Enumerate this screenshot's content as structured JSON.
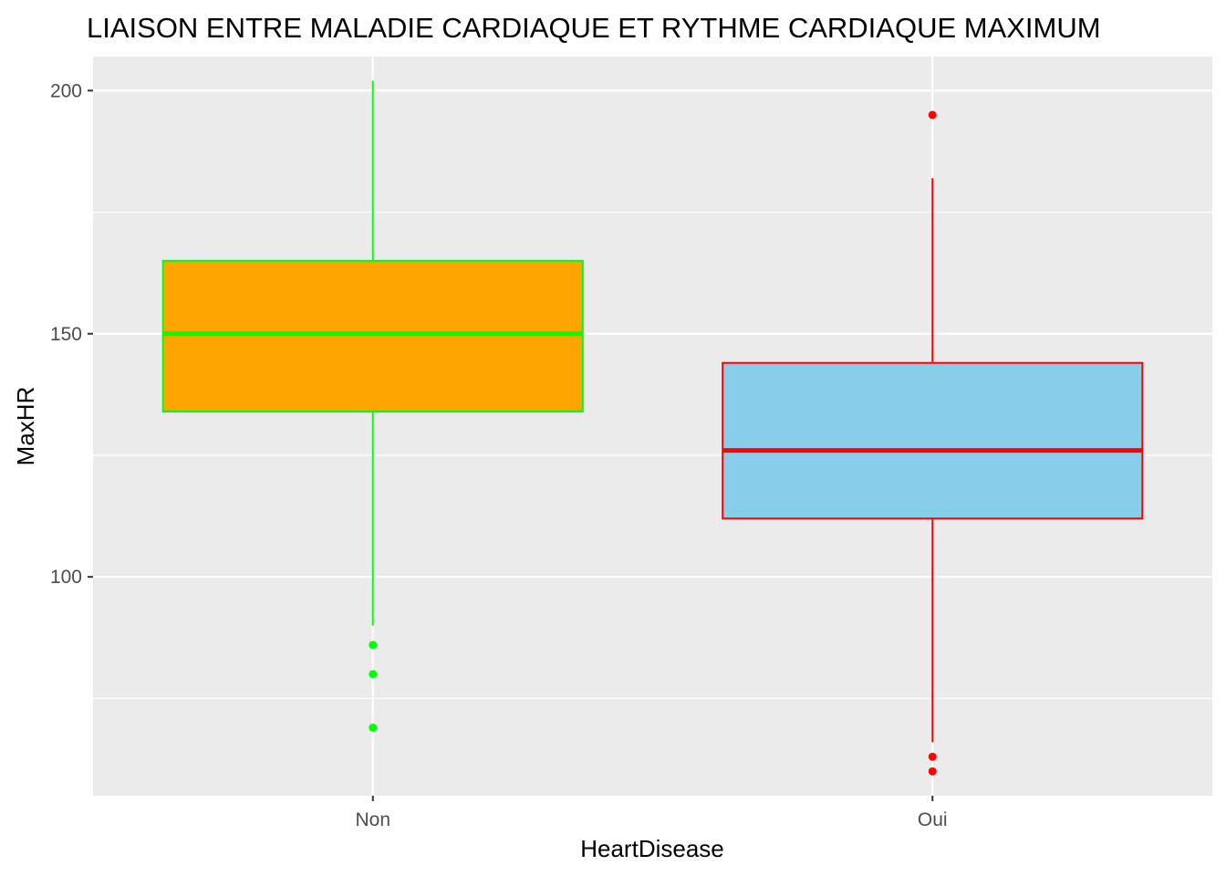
{
  "chart_data": {
    "type": "boxplot",
    "title": "LIAISON ENTRE MALADIE CARDIAQUE ET RYTHME CARDIAQUE MAXIMUM",
    "xlabel": "HeartDisease",
    "ylabel": "MaxHR",
    "categories": [
      "Non",
      "Oui"
    ],
    "ylim": [
      55,
      207
    ],
    "yticks": [
      100,
      150,
      200
    ],
    "grid": true,
    "legend": "none",
    "boxes": [
      {
        "category": "Non",
        "fill": "#FFA500",
        "color": "#00FF00",
        "whisker_low": 90,
        "q1": 134,
        "median": 150,
        "q3": 165,
        "whisker_high": 202,
        "outliers": [
          86,
          80,
          69
        ]
      },
      {
        "category": "Oui",
        "fill": "#87CEEB",
        "color": "#FF0000",
        "whisker_low": 66,
        "q1": 112,
        "median": 126,
        "q3": 144,
        "whisker_high": 182,
        "outliers": [
          195,
          63,
          60
        ]
      }
    ]
  },
  "colors": {
    "panel_background": "#EBEBEB",
    "grid_line": "#FFFFFF",
    "tick_text": "#4D4D4D",
    "tick_mark": "#333333"
  }
}
